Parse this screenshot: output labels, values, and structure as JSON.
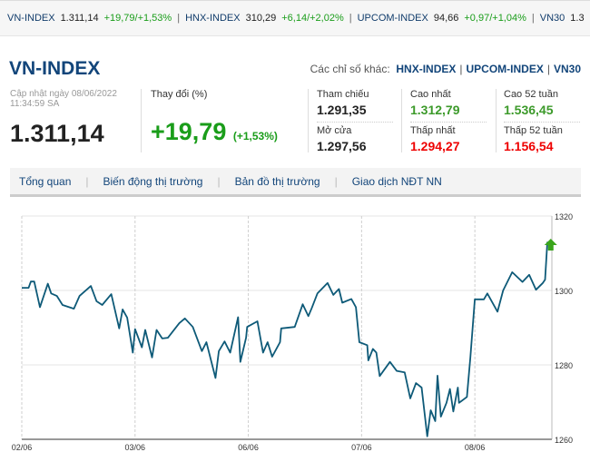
{
  "ticker": [
    {
      "name": "VN-INDEX",
      "value": "1.311,14",
      "change": "+19,79/+1,53%"
    },
    {
      "name": "HNX-INDEX",
      "value": "310,29",
      "change": "+6,14/+2,02%"
    },
    {
      "name": "UPCOM-INDEX",
      "value": "94,66",
      "change": "+0,97/+1,04%"
    },
    {
      "name": "VN30",
      "value": "1.3"
    }
  ],
  "title": "VN-INDEX",
  "others": {
    "label": "Các chỉ số khác:",
    "links": [
      "HNX-INDEX",
      "UPCOM-INDEX",
      "VN30"
    ]
  },
  "updated": {
    "line1": "Cập nhật ngày 08/06/2022",
    "line2": "11:34:59 SA"
  },
  "price": "1.311,14",
  "change": {
    "label": "Thay đổi (%)",
    "value": "+19,79",
    "percent": "(+1,53%)"
  },
  "stats": [
    {
      "label": "Tham chiếu",
      "value": "1.291,35",
      "color": "neutral"
    },
    {
      "label": "Mở cửa",
      "value": "1.297,56",
      "color": "neutral"
    },
    {
      "label": "Cao nhất",
      "value": "1.312,79",
      "color": "up"
    },
    {
      "label": "Thấp nhất",
      "value": "1.294,27",
      "color": "down"
    },
    {
      "label": "Cao 52 tuần",
      "value": "1.536,45",
      "color": "up"
    },
    {
      "label": "Thấp 52 tuần",
      "value": "1.156,54",
      "color": "down"
    }
  ],
  "tabs": [
    "Tổng quan",
    "Biến động thị trường",
    "Bản đồ thị trường",
    "Giao dịch NĐT NN"
  ],
  "chart_data": {
    "type": "line",
    "x_tick_labels": [
      "02/06",
      "03/06",
      "06/06",
      "07/06",
      "08/06"
    ],
    "y_ticks": [
      1260,
      1280,
      1300,
      1320
    ],
    "ylim": [
      1260,
      1320
    ],
    "xlim": [
      0,
      4.68
    ],
    "line_color": "#0e5a78",
    "marker": "green-up-arrow",
    "series": [
      {
        "name": "VN-INDEX",
        "points": [
          [
            0,
            1300.7
          ],
          [
            0.06,
            1300.7
          ],
          [
            0.08,
            1302.4
          ],
          [
            0.11,
            1302.4
          ],
          [
            0.16,
            1295.5
          ],
          [
            0.23,
            1301.8
          ],
          [
            0.26,
            1299.2
          ],
          [
            0.31,
            1298.5
          ],
          [
            0.36,
            1296.1
          ],
          [
            0.46,
            1295.1
          ],
          [
            0.51,
            1298.5
          ],
          [
            0.61,
            1301.2
          ],
          [
            0.66,
            1297.1
          ],
          [
            0.71,
            1296.1
          ],
          [
            0.79,
            1299
          ],
          [
            0.86,
            1289.8
          ],
          [
            0.89,
            1294.9
          ],
          [
            0.93,
            1292.7
          ],
          [
            0.98,
            1283.3
          ],
          [
            1,
            1289.6
          ],
          [
            1.06,
            1284.7
          ],
          [
            1.09,
            1289.4
          ],
          [
            1.15,
            1282
          ],
          [
            1.19,
            1289.4
          ],
          [
            1.24,
            1287.1
          ],
          [
            1.29,
            1287.3
          ],
          [
            1.39,
            1291.2
          ],
          [
            1.44,
            1292.5
          ],
          [
            1.51,
            1290.2
          ],
          [
            1.59,
            1283.7
          ],
          [
            1.63,
            1286.1
          ],
          [
            1.71,
            1276.5
          ],
          [
            1.74,
            1283.7
          ],
          [
            1.79,
            1286.3
          ],
          [
            1.84,
            1283.3
          ],
          [
            1.91,
            1292.8
          ],
          [
            1.93,
            1280.8
          ],
          [
            1.98,
            1287.3
          ],
          [
            1.99,
            1290.2
          ],
          [
            2.08,
            1291.7
          ],
          [
            2.13,
            1283.3
          ],
          [
            2.17,
            1286.1
          ],
          [
            2.21,
            1282.2
          ],
          [
            2.28,
            1286.1
          ],
          [
            2.29,
            1289.8
          ],
          [
            2.41,
            1290.2
          ],
          [
            2.48,
            1296.3
          ],
          [
            2.53,
            1293.1
          ],
          [
            2.56,
            1295.3
          ],
          [
            2.61,
            1299.2
          ],
          [
            2.7,
            1302
          ],
          [
            2.75,
            1298.8
          ],
          [
            2.8,
            1300.4
          ],
          [
            2.83,
            1296.7
          ],
          [
            2.91,
            1297.7
          ],
          [
            2.95,
            1295.5
          ],
          [
            2.98,
            1286.1
          ],
          [
            3.05,
            1285.3
          ],
          [
            3.06,
            1281.2
          ],
          [
            3.1,
            1284.3
          ],
          [
            3.13,
            1283.3
          ],
          [
            3.16,
            1277
          ],
          [
            3.25,
            1280.8
          ],
          [
            3.31,
            1278.4
          ],
          [
            3.38,
            1278
          ],
          [
            3.43,
            1271
          ],
          [
            3.48,
            1275.1
          ],
          [
            3.53,
            1273.9
          ],
          [
            3.58,
            1260.8
          ],
          [
            3.61,
            1267.8
          ],
          [
            3.65,
            1264.9
          ],
          [
            3.67,
            1277.1
          ],
          [
            3.7,
            1266.1
          ],
          [
            3.75,
            1269.8
          ],
          [
            3.78,
            1273.5
          ],
          [
            3.81,
            1267.5
          ],
          [
            3.85,
            1273.9
          ],
          [
            3.86,
            1269.8
          ],
          [
            3.93,
            1271.4
          ],
          [
            3.96,
            1282
          ],
          [
            4,
            1297.6
          ],
          [
            4.08,
            1297.6
          ],
          [
            4.11,
            1299.2
          ],
          [
            4.2,
            1294.3
          ],
          [
            4.25,
            1300
          ],
          [
            4.33,
            1304.9
          ],
          [
            4.42,
            1302.3
          ],
          [
            4.48,
            1304.2
          ],
          [
            4.54,
            1300.2
          ],
          [
            4.6,
            1302
          ],
          [
            4.62,
            1302.9
          ],
          [
            4.64,
            1312.9
          ],
          [
            4.67,
            1312.2
          ]
        ]
      }
    ]
  }
}
